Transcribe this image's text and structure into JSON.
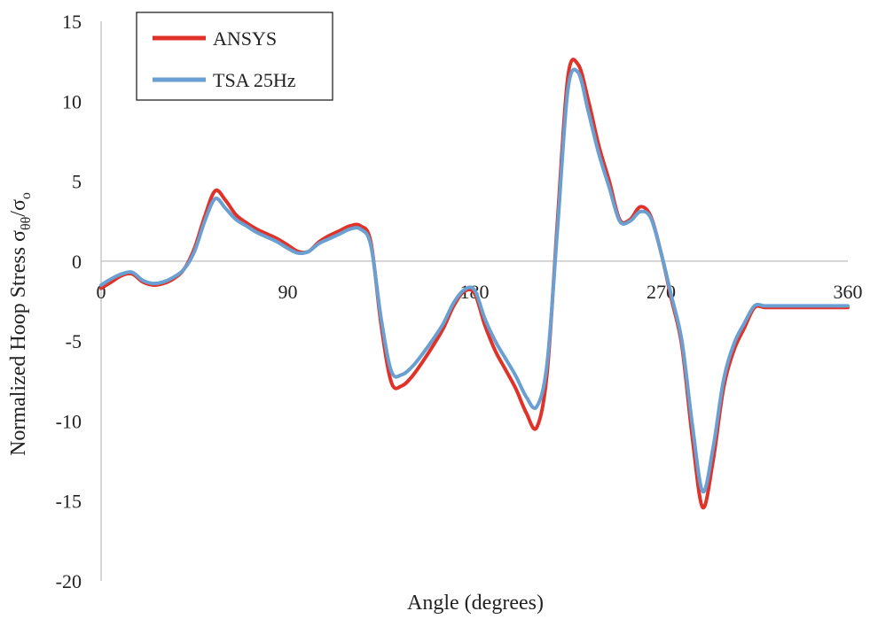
{
  "chart_data": {
    "type": "line",
    "title": "",
    "xlabel": "Angle (degrees)",
    "ylabel": {
      "main": "Normalized Hoop Stress σ",
      "sub1": "θθ",
      "slash": "/σ",
      "sub2": "o"
    },
    "xlim": [
      0,
      360
    ],
    "ylim": [
      -20,
      15
    ],
    "xticks": [
      0,
      90,
      180,
      270,
      360
    ],
    "yticks": [
      15,
      10,
      5,
      0,
      -5,
      -10,
      -15,
      -20
    ],
    "grid": false,
    "legend_position": "top-left",
    "series": [
      {
        "name": "ANSYS",
        "color": "#e03228",
        "x": [
          0,
          5,
          10,
          15,
          20,
          25,
          30,
          35,
          40,
          45,
          50,
          55,
          60,
          65,
          70,
          75,
          80,
          85,
          90,
          95,
          100,
          105,
          110,
          115,
          120,
          125,
          130,
          135,
          140,
          145,
          150,
          155,
          160,
          165,
          170,
          175,
          180,
          185,
          190,
          195,
          200,
          205,
          210,
          215,
          220,
          225,
          230,
          235,
          240,
          245,
          250,
          255,
          260,
          265,
          270,
          275,
          280,
          285,
          290,
          295,
          300,
          305,
          310,
          315,
          320,
          325,
          330,
          335,
          340,
          345,
          350,
          355,
          360
        ],
        "y": [
          -1.7,
          -1.3,
          -0.9,
          -0.8,
          -1.3,
          -1.5,
          -1.4,
          -1.1,
          -0.5,
          0.8,
          2.8,
          4.4,
          3.8,
          2.9,
          2.4,
          2.0,
          1.7,
          1.4,
          1.0,
          0.6,
          0.6,
          1.2,
          1.6,
          1.9,
          2.2,
          2.2,
          1.2,
          -4.0,
          -7.6,
          -7.8,
          -7.2,
          -6.3,
          -5.3,
          -4.2,
          -2.8,
          -1.9,
          -2.0,
          -4.0,
          -5.6,
          -6.8,
          -8.0,
          -9.5,
          -10.4,
          -7.0,
          2.5,
          11.5,
          12.3,
          10.0,
          7.2,
          5.0,
          2.6,
          2.6,
          3.4,
          2.8,
          0.5,
          -2.4,
          -5.3,
          -11.0,
          -15.4,
          -12.5,
          -8.0,
          -5.6,
          -4.2,
          -2.9,
          -2.9,
          -2.9,
          -2.9,
          -2.9,
          -2.9,
          -2.9,
          -2.9,
          -2.9,
          -2.9
        ]
      },
      {
        "name": "TSA 25Hz",
        "color": "#6a9fd2",
        "x": [
          0,
          5,
          10,
          15,
          20,
          25,
          30,
          35,
          40,
          45,
          50,
          55,
          60,
          65,
          70,
          75,
          80,
          85,
          90,
          95,
          100,
          105,
          110,
          115,
          120,
          125,
          130,
          135,
          140,
          145,
          150,
          155,
          160,
          165,
          170,
          175,
          180,
          185,
          190,
          195,
          200,
          205,
          210,
          215,
          220,
          225,
          230,
          235,
          240,
          245,
          250,
          255,
          260,
          265,
          270,
          275,
          280,
          285,
          290,
          295,
          300,
          305,
          310,
          315,
          320,
          325,
          330,
          335,
          340,
          345,
          350,
          355,
          360
        ],
        "y": [
          -1.5,
          -1.1,
          -0.8,
          -0.7,
          -1.2,
          -1.4,
          -1.3,
          -1.0,
          -0.5,
          0.6,
          2.5,
          3.9,
          3.3,
          2.6,
          2.2,
          1.8,
          1.5,
          1.2,
          0.8,
          0.5,
          0.6,
          1.1,
          1.4,
          1.7,
          2.0,
          2.0,
          1.0,
          -3.6,
          -6.9,
          -7.1,
          -6.6,
          -5.8,
          -4.9,
          -3.9,
          -2.6,
          -1.8,
          -1.8,
          -3.6,
          -5.0,
          -6.1,
          -7.2,
          -8.5,
          -9.1,
          -6.4,
          2.0,
          10.7,
          11.8,
          9.3,
          6.7,
          4.6,
          2.5,
          2.5,
          3.1,
          2.7,
          0.5,
          -2.2,
          -5.0,
          -10.2,
          -14.4,
          -11.7,
          -7.5,
          -5.2,
          -3.9,
          -2.8,
          -2.8,
          -2.8,
          -2.8,
          -2.8,
          -2.8,
          -2.8,
          -2.8,
          -2.8,
          -2.8
        ]
      }
    ]
  }
}
